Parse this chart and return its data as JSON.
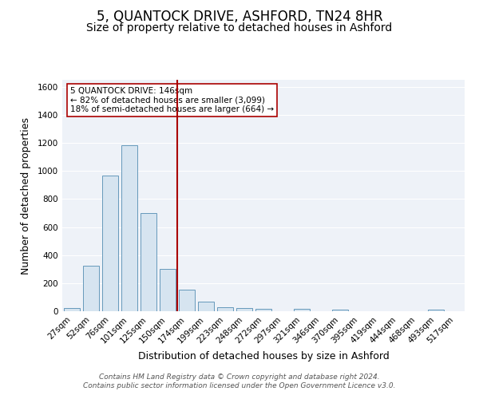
{
  "title": "5, QUANTOCK DRIVE, ASHFORD, TN24 8HR",
  "subtitle": "Size of property relative to detached houses in Ashford",
  "xlabel": "Distribution of detached houses by size in Ashford",
  "ylabel": "Number of detached properties",
  "footer_line1": "Contains HM Land Registry data © Crown copyright and database right 2024.",
  "footer_line2": "Contains public sector information licensed under the Open Government Licence v3.0.",
  "categories": [
    "27sqm",
    "52sqm",
    "76sqm",
    "101sqm",
    "125sqm",
    "150sqm",
    "174sqm",
    "199sqm",
    "223sqm",
    "248sqm",
    "272sqm",
    "297sqm",
    "321sqm",
    "346sqm",
    "370sqm",
    "395sqm",
    "419sqm",
    "444sqm",
    "468sqm",
    "493sqm",
    "517sqm"
  ],
  "values": [
    25,
    325,
    970,
    1185,
    700,
    300,
    155,
    70,
    30,
    20,
    15,
    0,
    15,
    0,
    12,
    0,
    0,
    0,
    0,
    12,
    0
  ],
  "bar_color": "#d6e4f0",
  "bar_edge_color": "#6699bb",
  "vline_x": 5.5,
  "vline_color": "#aa0000",
  "annotation_text": "5 QUANTOCK DRIVE: 146sqm\n← 82% of detached houses are smaller (3,099)\n18% of semi-detached houses are larger (664) →",
  "annotation_box_color": "#ffffff",
  "annotation_box_edge_color": "#aa0000",
  "ylim": [
    0,
    1650
  ],
  "yticks": [
    0,
    200,
    400,
    600,
    800,
    1000,
    1200,
    1400,
    1600
  ],
  "bg_color": "#ffffff",
  "plot_bg_color": "#eef2f8",
  "grid_color": "#ffffff",
  "title_fontsize": 12,
  "subtitle_fontsize": 10,
  "axis_label_fontsize": 9,
  "tick_fontsize": 7.5,
  "footer_fontsize": 6.5,
  "ann_fontsize": 7.5
}
